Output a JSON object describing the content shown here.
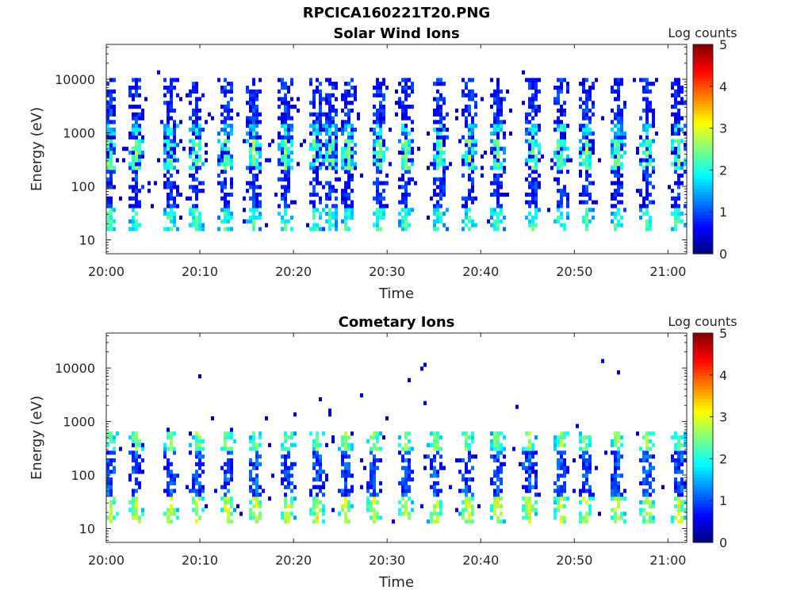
{
  "figure": {
    "title": "RPCICA160221T20.PNG"
  },
  "colors": {
    "axis": "#262626",
    "background": "#ffffff",
    "colormap": "jet"
  },
  "chart_data": [
    {
      "type": "heatmap",
      "title": "Solar Wind Ions",
      "xlabel": "Time",
      "ylabel": "Energy (eV)",
      "x_ticks": [
        "20:00",
        "20:10",
        "20:20",
        "20:30",
        "20:40",
        "20:50",
        "21:00"
      ],
      "xlim": [
        "20:00",
        "21:02"
      ],
      "y_scale": "log",
      "y_ticks": [
        10,
        100,
        1000,
        10000
      ],
      "ylim": [
        5.5,
        45000
      ],
      "grid": false,
      "colorbar": {
        "label": "Log counts",
        "ticks": [
          0,
          1,
          2,
          3,
          4,
          5
        ],
        "range": [
          0,
          5
        ],
        "colormap": "jet"
      },
      "bursts": [
        "20:00.3",
        "20:03.2",
        "20:06.8",
        "20:09.6",
        "20:12.8",
        "20:15.8",
        "20:19.2",
        "20:22.4",
        "20:24.0",
        "20:25.8",
        "20:29.2",
        "20:32.0",
        "20:35.6",
        "20:38.8",
        "20:41.8",
        "20:45.6",
        "20:48.5",
        "20:51.3",
        "20:54.6",
        "20:57.8",
        "21:01.0"
      ],
      "bands": [
        {
          "e_min": 15,
          "e_max": 38,
          "level": 1.4
        },
        {
          "e_min": 200,
          "e_max": 800,
          "level": 1.6
        },
        {
          "e_min": 900,
          "e_max": 1500,
          "level": 1.2
        },
        {
          "e_min": 40,
          "e_max": 10000,
          "level": 0.3
        }
      ]
    },
    {
      "type": "heatmap",
      "title": "Cometary Ions",
      "xlabel": "Time",
      "ylabel": "Energy (eV)",
      "x_ticks": [
        "20:00",
        "20:10",
        "20:20",
        "20:30",
        "20:40",
        "20:50",
        "21:00"
      ],
      "xlim": [
        "20:00",
        "21:02"
      ],
      "y_scale": "log",
      "y_ticks": [
        10,
        100,
        1000,
        10000
      ],
      "ylim": [
        5.5,
        45000
      ],
      "grid": false,
      "colorbar": {
        "label": "Log counts",
        "ticks": [
          0,
          1,
          2,
          3,
          4,
          5
        ],
        "range": [
          0,
          5
        ],
        "colormap": "jet"
      },
      "bursts": [
        "20:00.4",
        "20:03.2",
        "20:06.8",
        "20:09.8",
        "20:12.9",
        "20:16.0",
        "20:19.4",
        "20:22.6",
        "20:25.6",
        "20:28.6",
        "20:32.0",
        "20:35.2",
        "20:38.6",
        "20:41.8",
        "20:45.2",
        "20:48.6",
        "20:51.2",
        "20:54.6",
        "20:57.8",
        "21:01.2"
      ],
      "bands": [
        {
          "e_min": 12,
          "e_max": 40,
          "level": 2.0
        },
        {
          "e_min": 300,
          "e_max": 700,
          "level": 1.7
        },
        {
          "e_min": 40,
          "e_max": 300,
          "level": 0.5
        }
      ]
    }
  ]
}
